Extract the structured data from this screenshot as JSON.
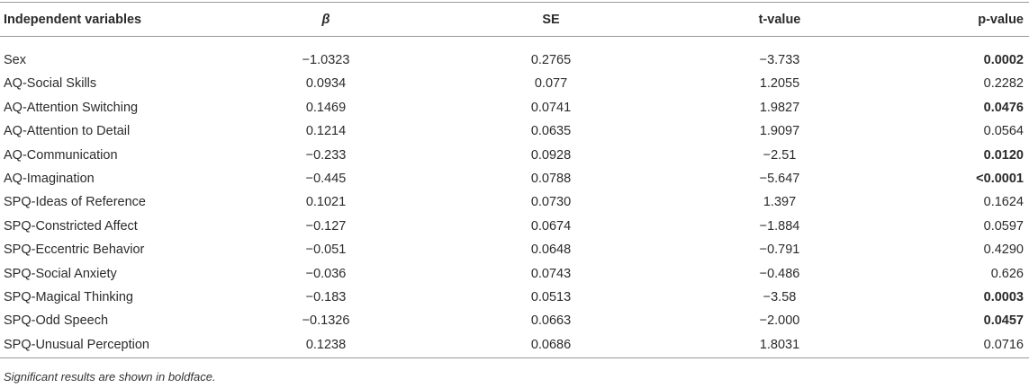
{
  "table": {
    "header": [
      "Independent variables",
      "β",
      "SE",
      "t-value",
      "p-value"
    ],
    "rows": [
      {
        "cells": [
          "Sex",
          "−1.0323",
          "0.2765",
          "−3.733",
          "0.0002"
        ],
        "bold": true
      },
      {
        "cells": [
          "AQ-Social Skills",
          "0.0934",
          "0.077",
          "1.2055",
          "0.2282"
        ],
        "bold": false
      },
      {
        "cells": [
          "AQ-Attention Switching",
          "0.1469",
          "0.0741",
          "1.9827",
          "0.0476"
        ],
        "bold": true
      },
      {
        "cells": [
          "AQ-Attention to Detail",
          "0.1214",
          "0.0635",
          "1.9097",
          "0.0564"
        ],
        "bold": false
      },
      {
        "cells": [
          "AQ-Communication",
          "−0.233",
          "0.0928",
          "−2.51",
          "0.0120"
        ],
        "bold": true
      },
      {
        "cells": [
          "AQ-Imagination",
          "−0.445",
          "0.0788",
          "−5.647",
          "<0.0001"
        ],
        "bold": true
      },
      {
        "cells": [
          "SPQ-Ideas of Reference",
          "0.1021",
          "0.0730",
          "1.397",
          "0.1624"
        ],
        "bold": false
      },
      {
        "cells": [
          "SPQ-Constricted Affect",
          "−0.127",
          "0.0674",
          "−1.884",
          "0.0597"
        ],
        "bold": false
      },
      {
        "cells": [
          "SPQ-Eccentric Behavior",
          "−0.051",
          "0.0648",
          "−0.791",
          "0.4290"
        ],
        "bold": false
      },
      {
        "cells": [
          "SPQ-Social Anxiety",
          "−0.036",
          "0.0743",
          "−0.486",
          "0.626"
        ],
        "bold": false
      },
      {
        "cells": [
          "SPQ-Magical Thinking",
          "−0.183",
          "0.0513",
          "−3.58",
          "0.0003"
        ],
        "bold": true
      },
      {
        "cells": [
          "SPQ-Odd Speech",
          "−0.1326",
          "0.0663",
          "−2.000",
          "0.0457"
        ],
        "bold": true
      },
      {
        "cells": [
          "SPQ-Unusual Perception",
          "0.1238",
          "0.0686",
          "1.8031",
          "0.0716"
        ],
        "bold": false
      }
    ],
    "footnote": "Significant results are shown in boldface."
  }
}
